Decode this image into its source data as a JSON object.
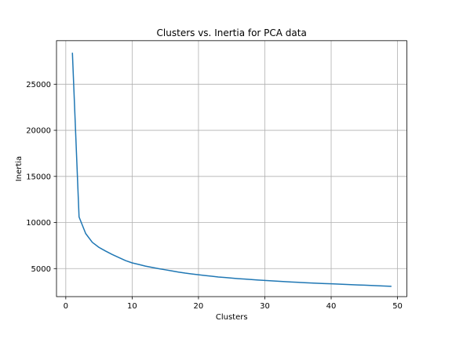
{
  "chart_data": {
    "type": "line",
    "title": "Clusters vs. Inertia for PCA data",
    "xlabel": "Clusters",
    "ylabel": "Inertia",
    "xlim": [
      -1.4,
      51.4
    ],
    "ylim": [
      1960,
      29720
    ],
    "xticks": [
      0,
      10,
      20,
      30,
      40,
      50
    ],
    "yticks": [
      5000,
      10000,
      15000,
      20000,
      25000
    ],
    "grid": true,
    "color": "#1f77b4",
    "series": [
      {
        "x": [
          1,
          2,
          3,
          4,
          5,
          6,
          7,
          8,
          9,
          10,
          11,
          12,
          13,
          14,
          15,
          16,
          17,
          18,
          19,
          20,
          21,
          22,
          23,
          24,
          25,
          26,
          27,
          28,
          29,
          30,
          31,
          32,
          33,
          34,
          35,
          36,
          37,
          38,
          39,
          40,
          41,
          42,
          43,
          44,
          45,
          46,
          47,
          48,
          49
        ],
        "values": [
          28350,
          10600,
          8800,
          7850,
          7300,
          6900,
          6530,
          6200,
          5870,
          5620,
          5450,
          5270,
          5130,
          4990,
          4870,
          4750,
          4620,
          4510,
          4420,
          4330,
          4250,
          4170,
          4090,
          4030,
          3970,
          3910,
          3860,
          3810,
          3760,
          3720,
          3670,
          3630,
          3590,
          3550,
          3510,
          3470,
          3440,
          3410,
          3380,
          3350,
          3320,
          3290,
          3260,
          3230,
          3200,
          3170,
          3140,
          3110,
          3080
        ]
      }
    ]
  }
}
